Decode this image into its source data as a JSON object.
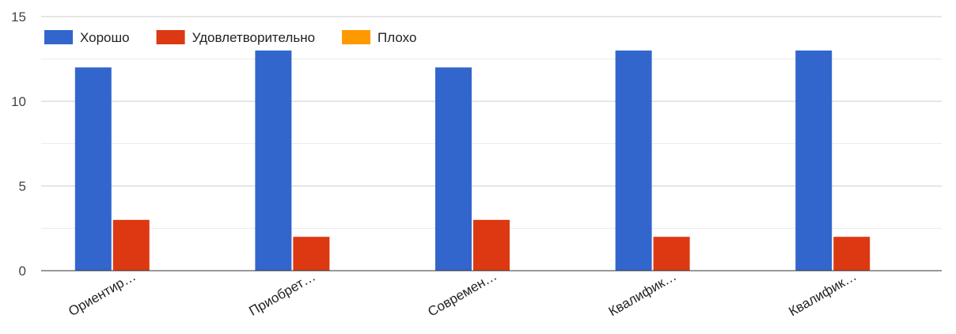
{
  "chart_data": {
    "type": "bar",
    "categories": [
      "Ориентир…",
      "Приобрет…",
      "Современ…",
      "Квалифик…",
      "Квалифик…"
    ],
    "series": [
      {
        "name": "Хорошо",
        "color": "#3366cc",
        "values": [
          12,
          13,
          12,
          13,
          13
        ]
      },
      {
        "name": "Удовлетворительно",
        "color": "#dc3912",
        "values": [
          3,
          2,
          3,
          2,
          2
        ]
      },
      {
        "name": "Плохо",
        "color": "#ff9900",
        "values": [
          0,
          0,
          0,
          0,
          0
        ]
      }
    ],
    "ylim": [
      0,
      15
    ],
    "yticks": [
      0,
      5,
      10,
      15
    ],
    "grid": true,
    "legend_position": "top-left",
    "title": "",
    "xlabel": "",
    "ylabel": ""
  }
}
